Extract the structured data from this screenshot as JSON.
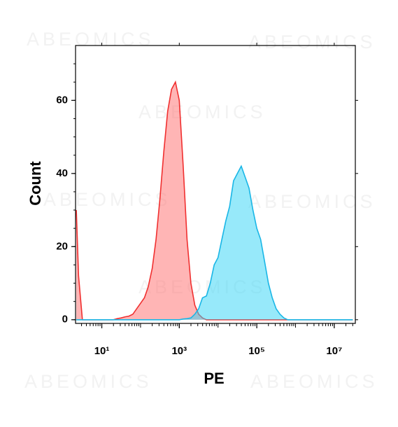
{
  "chart_data": {
    "type": "histogram-overlay",
    "watermark": "ABEOMICS",
    "x_label": "PE",
    "y_label": "Count",
    "log_x": true,
    "xlim": [
      2.1,
      35000000
    ],
    "ylim": [
      -1,
      75
    ],
    "xticks": [
      {
        "value": 10,
        "label": "10¹"
      },
      {
        "value": 1000,
        "label": "10³"
      },
      {
        "value": 100000,
        "label": "10⁵"
      },
      {
        "value": 10000000,
        "label": "10⁷"
      }
    ],
    "yticks": [
      0,
      20,
      40,
      60
    ],
    "x": [
      2.2,
      2.51,
      3.16,
      3.98,
      5.01,
      6.31,
      7.94,
      10,
      12.6,
      15.8,
      20,
      25.1,
      31.6,
      39.8,
      50.1,
      63.1,
      79.4,
      100,
      126,
      158,
      200,
      251,
      316,
      398,
      501,
      631,
      794,
      1000,
      1259,
      1585,
      1995,
      2512,
      3162,
      3981,
      5012,
      6310,
      7943,
      10000,
      12589,
      15849,
      19953,
      25119,
      31623,
      39811,
      50119,
      63096,
      79433,
      100000,
      125893,
      158489,
      199526,
      251189,
      316228,
      398107,
      501187,
      630957,
      794328,
      1000000,
      30000000
    ],
    "series": [
      {
        "color": "#f03030",
        "fill": "#ff6b6b",
        "values": [
          30,
          12,
          0,
          0,
          0,
          0,
          0,
          0,
          0,
          0,
          0,
          0.3,
          0.5,
          0.8,
          1,
          1.5,
          3,
          4.5,
          6,
          9,
          14,
          22,
          33,
          46,
          57,
          63,
          65,
          60,
          42,
          22,
          10,
          4,
          1.5,
          0.5,
          0,
          0,
          0,
          0,
          0,
          0,
          0,
          0,
          0,
          0,
          0,
          0,
          0,
          0,
          0,
          0,
          0,
          0,
          0,
          0,
          0,
          0,
          0,
          0,
          0
        ]
      },
      {
        "color": "#19b6e6",
        "fill": "#2fd3f5",
        "values": [
          0,
          0,
          0,
          0,
          0,
          0,
          0,
          0,
          0,
          0,
          0,
          0,
          0,
          0,
          0,
          0,
          0,
          0,
          0,
          0,
          0,
          0,
          0,
          0,
          0,
          0,
          0,
          0,
          0.2,
          0.3,
          0.5,
          1.5,
          3,
          6,
          6.5,
          10,
          15,
          17,
          22,
          27,
          31,
          38,
          40,
          42,
          39,
          36,
          30,
          25,
          22,
          16,
          10,
          6,
          3,
          1.5,
          0.5,
          0,
          0,
          0,
          0
        ]
      }
    ]
  }
}
